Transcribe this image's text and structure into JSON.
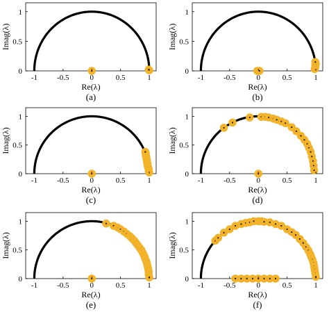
{
  "figure": {
    "marker_color": "#f2b22a",
    "curve_color": "#000000",
    "marker_dot_color": "#1a1a1a"
  },
  "chart_data": [
    {
      "type": "scatter",
      "caption": "(a)",
      "xlabel": "Re(λ)",
      "ylabel": "Imag(λ)",
      "xlim": [
        -1.15,
        1.12
      ],
      "ylim": [
        0,
        1.15
      ],
      "xticks": [
        "-1",
        "-0.5",
        "0",
        "0.5",
        "1"
      ],
      "xtick_values": [
        -1,
        -0.5,
        0,
        0.5,
        1
      ],
      "yticks": [
        "0",
        "0.5",
        "1"
      ],
      "ytick_values": [
        0,
        0.5,
        1
      ],
      "reference_curve": "unit semicircle",
      "points": [
        [
          0,
          0
        ],
        [
          1.0,
          0.01
        ],
        [
          0.99,
          0.02
        ]
      ]
    },
    {
      "type": "scatter",
      "caption": "(b)",
      "xlabel": "Re(λ)",
      "ylabel": "Imag(λ)",
      "xlim": [
        -1.15,
        1.12
      ],
      "ylim": [
        0,
        1.15
      ],
      "xticks": [
        "-1",
        "-0.5",
        "0",
        "0.5",
        "1"
      ],
      "xtick_values": [
        -1,
        -0.5,
        0,
        0.5,
        1
      ],
      "yticks": [
        "0",
        "0.5",
        "1"
      ],
      "ytick_values": [
        0,
        0.5,
        1
      ],
      "reference_curve": "unit semicircle",
      "points": [
        [
          -0.02,
          0
        ],
        [
          0.02,
          0
        ],
        [
          0.98,
          0.03
        ],
        [
          0.99,
          0.06
        ],
        [
          0.99,
          0.09
        ],
        [
          1.0,
          0.12
        ],
        [
          0.99,
          0.15
        ]
      ]
    },
    {
      "type": "scatter",
      "caption": "(c)",
      "xlabel": "Re(λ)",
      "ylabel": "Imag(λ)",
      "xlim": [
        -1.15,
        1.12
      ],
      "ylim": [
        0,
        1.15
      ],
      "xticks": [
        "-1",
        "-0.5",
        "0",
        "0.5",
        "1"
      ],
      "xtick_values": [
        -1,
        -0.5,
        0,
        0.5,
        1
      ],
      "yticks": [
        "0",
        "0.5",
        "1"
      ],
      "ytick_values": [
        0,
        0.5,
        1
      ],
      "reference_curve": "unit semicircle",
      "points": [
        [
          0,
          0
        ],
        [
          1.0,
          0.02
        ],
        [
          0.99,
          0.05
        ],
        [
          0.99,
          0.08
        ],
        [
          0.98,
          0.11
        ],
        [
          0.97,
          0.14
        ],
        [
          0.97,
          0.17
        ],
        [
          0.96,
          0.2
        ],
        [
          0.96,
          0.23
        ],
        [
          0.95,
          0.26
        ],
        [
          0.95,
          0.29
        ],
        [
          0.94,
          0.32
        ],
        [
          0.94,
          0.35
        ],
        [
          0.93,
          0.38
        ]
      ]
    },
    {
      "type": "scatter",
      "caption": "(d)",
      "xlabel": "Re(λ)",
      "ylabel": "Imag(λ)",
      "xlim": [
        -1.15,
        1.12
      ],
      "ylim": [
        0,
        1.15
      ],
      "xticks": [
        "-1",
        "-0.5",
        "0",
        "0.5",
        "1"
      ],
      "xtick_values": [
        -1,
        -0.5,
        0,
        0.5,
        1
      ],
      "yticks": [
        "0",
        "0.5",
        "1"
      ],
      "ytick_values": [
        0,
        0.5,
        1
      ],
      "reference_curve": "unit semicircle",
      "points": [
        [
          0,
          0
        ],
        [
          -0.6,
          0.8
        ],
        [
          -0.45,
          0.89
        ],
        [
          -0.15,
          0.98
        ],
        [
          0.05,
          0.99
        ],
        [
          0.12,
          0.99
        ],
        [
          0.18,
          0.98
        ],
        [
          0.26,
          0.96
        ],
        [
          0.32,
          0.94
        ],
        [
          0.4,
          0.91
        ],
        [
          0.47,
          0.88
        ],
        [
          0.58,
          0.81
        ],
        [
          0.66,
          0.74
        ],
        [
          0.74,
          0.66
        ],
        [
          0.8,
          0.59
        ],
        [
          0.85,
          0.52
        ],
        [
          0.88,
          0.45
        ],
        [
          0.91,
          0.38
        ],
        [
          0.93,
          0.3
        ],
        [
          0.95,
          0.22
        ],
        [
          0.96,
          0.14
        ],
        [
          0.97,
          0.06
        ]
      ]
    },
    {
      "type": "scatter",
      "caption": "(e)",
      "xlabel": "Re(λ)",
      "ylabel": "Imag(λ)",
      "xlim": [
        -1.15,
        1.12
      ],
      "ylim": [
        0,
        1.15
      ],
      "xticks": [
        "-1",
        "-0.5",
        "0",
        "0.5",
        "1"
      ],
      "xtick_values": [
        -1,
        -0.5,
        0,
        0.5,
        1
      ],
      "yticks": [
        "0",
        "0.5",
        "1"
      ],
      "ytick_values": [
        0,
        0.5,
        1
      ],
      "reference_curve": "unit semicircle",
      "points": [
        [
          0,
          0
        ],
        [
          0.25,
          0.96
        ],
        [
          0.38,
          0.92
        ],
        [
          0.45,
          0.89
        ],
        [
          0.5,
          0.86
        ],
        [
          0.56,
          0.82
        ],
        [
          0.61,
          0.78
        ],
        [
          0.66,
          0.74
        ],
        [
          0.7,
          0.7
        ],
        [
          0.74,
          0.66
        ],
        [
          0.77,
          0.62
        ],
        [
          0.8,
          0.58
        ],
        [
          0.83,
          0.54
        ],
        [
          0.86,
          0.5
        ],
        [
          0.88,
          0.46
        ],
        [
          0.9,
          0.42
        ],
        [
          0.92,
          0.38
        ],
        [
          0.93,
          0.34
        ],
        [
          0.95,
          0.3
        ],
        [
          0.96,
          0.26
        ],
        [
          0.97,
          0.22
        ],
        [
          0.98,
          0.17
        ],
        [
          0.99,
          0.12
        ],
        [
          0.99,
          0.07
        ],
        [
          1.0,
          0.02
        ]
      ]
    },
    {
      "type": "scatter",
      "caption": "(f)",
      "xlabel": "Re(λ)",
      "ylabel": "Imag(λ)",
      "xlim": [
        -1.15,
        1.12
      ],
      "ylim": [
        0,
        1.15
      ],
      "xticks": [
        "-1",
        "-0.5",
        "0",
        "0.5",
        "1"
      ],
      "xtick_values": [
        -1,
        -0.5,
        0,
        0.5,
        1
      ],
      "yticks": [
        "0",
        "0.5",
        "1"
      ],
      "ytick_values": [
        0,
        0.5,
        1
      ],
      "reference_curve": "unit semicircle",
      "points": [
        [
          -0.75,
          0.66
        ],
        [
          -0.7,
          0.71
        ],
        [
          -0.6,
          0.8
        ],
        [
          -0.5,
          0.86
        ],
        [
          -0.4,
          0.92
        ],
        [
          -0.3,
          0.95
        ],
        [
          -0.22,
          0.97
        ],
        [
          -0.15,
          0.98
        ],
        [
          -0.08,
          1.0
        ],
        [
          0.0,
          1.0
        ],
        [
          0.05,
          1.0
        ],
        [
          0.1,
          0.99
        ],
        [
          0.2,
          0.98
        ],
        [
          0.3,
          0.95
        ],
        [
          0.4,
          0.92
        ],
        [
          0.5,
          0.86
        ],
        [
          0.58,
          0.81
        ],
        [
          0.65,
          0.76
        ],
        [
          0.72,
          0.69
        ],
        [
          0.78,
          0.62
        ],
        [
          0.83,
          0.55
        ],
        [
          0.87,
          0.49
        ],
        [
          0.9,
          0.43
        ],
        [
          0.92,
          0.38
        ],
        [
          0.94,
          0.33
        ],
        [
          0.96,
          0.27
        ],
        [
          0.97,
          0.21
        ],
        [
          0.98,
          0.15
        ],
        [
          0.99,
          0.09
        ],
        [
          1.0,
          0.03
        ],
        [
          -0.4,
          0
        ],
        [
          -0.3,
          0
        ],
        [
          -0.2,
          0
        ],
        [
          -0.1,
          0
        ],
        [
          0.0,
          0
        ],
        [
          0.1,
          0
        ],
        [
          0.2,
          0
        ],
        [
          0.3,
          0
        ]
      ]
    }
  ]
}
